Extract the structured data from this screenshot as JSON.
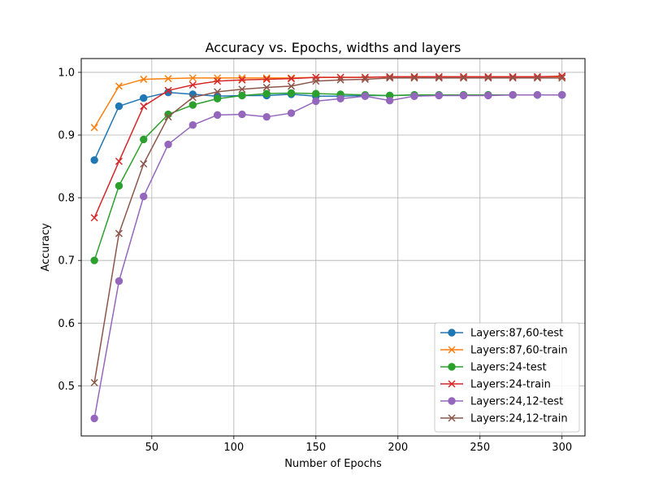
{
  "chart_data": {
    "type": "line",
    "title": "Accuracy vs. Epochs, widths and layers",
    "xlabel": "Number of Epochs",
    "ylabel": "Accuracy",
    "xlim": [
      7,
      314
    ],
    "ylim": [
      0.42,
      1.022
    ],
    "xticks": [
      50,
      100,
      150,
      200,
      250,
      300
    ],
    "yticks": [
      0.5,
      0.6,
      0.7,
      0.8,
      0.9,
      1.0
    ],
    "xtick_labels": [
      "50",
      "100",
      "150",
      "200",
      "250",
      "300"
    ],
    "ytick_labels": [
      "0.5",
      "0.6",
      "0.7",
      "0.8",
      "0.9",
      "1.0"
    ],
    "grid": true,
    "legend_position": "lower-right",
    "x": [
      15,
      30,
      45,
      60,
      75,
      90,
      105,
      120,
      135,
      150,
      165,
      180,
      195,
      210,
      225,
      240,
      255,
      270,
      285,
      300
    ],
    "series": [
      {
        "name": "Layers:87,60-test",
        "color": "#1f77b4",
        "marker": "circle",
        "values": [
          0.86,
          0.946,
          0.959,
          0.968,
          0.965,
          0.962,
          0.963,
          0.963,
          0.965,
          0.962,
          0.962,
          0.963,
          0.963,
          0.964,
          0.964,
          0.964,
          0.964,
          0.964,
          0.964,
          0.964
        ]
      },
      {
        "name": "Layers:87,60-train",
        "color": "#ff7f0e",
        "marker": "x",
        "values": [
          0.912,
          0.978,
          0.989,
          0.99,
          0.991,
          0.991,
          0.991,
          0.991,
          0.991,
          0.992,
          0.992,
          0.992,
          0.993,
          0.993,
          0.993,
          0.993,
          0.993,
          0.993,
          0.993,
          0.993
        ]
      },
      {
        "name": "Layers:24-test",
        "color": "#2ca02c",
        "marker": "circle",
        "values": [
          0.7,
          0.819,
          0.893,
          0.933,
          0.948,
          0.958,
          0.963,
          0.966,
          0.967,
          0.966,
          0.965,
          0.964,
          0.963,
          0.964,
          0.964,
          0.964,
          0.964,
          0.964,
          0.964,
          0.964
        ]
      },
      {
        "name": "Layers:24-train",
        "color": "#d62728",
        "marker": "x",
        "values": [
          0.768,
          0.858,
          0.946,
          0.971,
          0.98,
          0.986,
          0.988,
          0.989,
          0.99,
          0.992,
          0.992,
          0.992,
          0.993,
          0.993,
          0.993,
          0.993,
          0.993,
          0.993,
          0.993,
          0.994
        ]
      },
      {
        "name": "Layers:24,12-test",
        "color": "#9467bd",
        "marker": "circle",
        "values": [
          0.448,
          0.667,
          0.802,
          0.885,
          0.916,
          0.932,
          0.933,
          0.929,
          0.935,
          0.954,
          0.958,
          0.962,
          0.955,
          0.962,
          0.963,
          0.963,
          0.963,
          0.964,
          0.964,
          0.964
        ]
      },
      {
        "name": "Layers:24,12-train",
        "color": "#8c564b",
        "marker": "x",
        "values": [
          0.505,
          0.743,
          0.854,
          0.929,
          0.96,
          0.969,
          0.973,
          0.976,
          0.978,
          0.986,
          0.988,
          0.989,
          0.991,
          0.991,
          0.991,
          0.991,
          0.991,
          0.991,
          0.991,
          0.991
        ]
      }
    ]
  }
}
